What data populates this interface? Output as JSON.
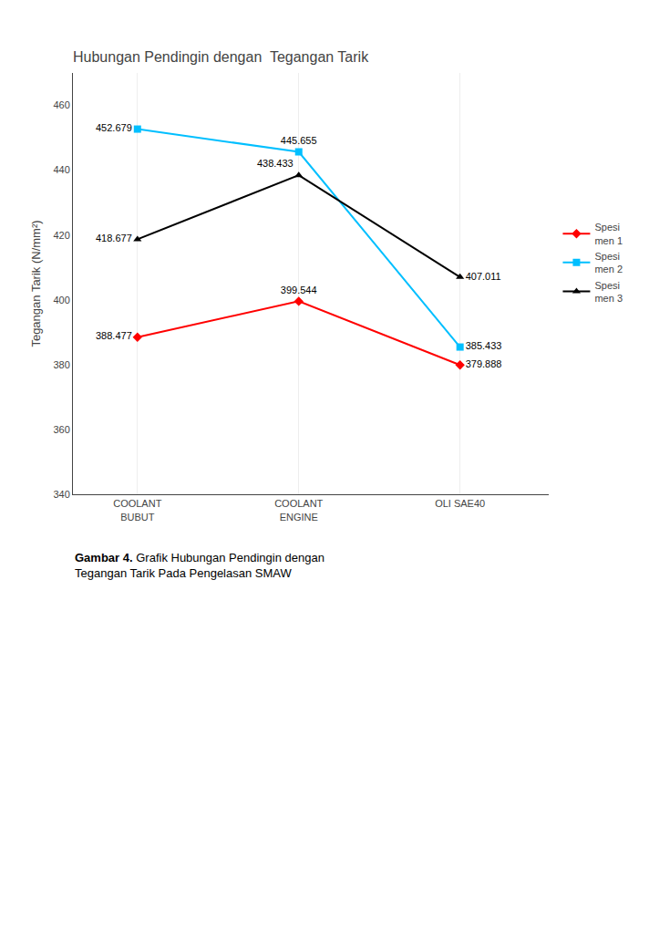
{
  "chart_data": {
    "type": "line",
    "title": "Hubungan Pendingin dengan  Tegangan Tarik",
    "y_label": "Tegangan Tarik (N/mm²)",
    "categories": [
      "COOLANT\nBUBUT",
      "COOLANT\nENGINE",
      "OLI SAE40"
    ],
    "series": [
      {
        "name": "Spesi\nmen 1",
        "color": "#FF0000",
        "marker": "diamond",
        "values": [
          388.477,
          399.544,
          379.888
        ]
      },
      {
        "name": "Spesi\nmen 2",
        "color": "#00BFFF",
        "marker": "square",
        "values": [
          452.679,
          445.655,
          385.433
        ]
      },
      {
        "name": "Spesi\nmen 3",
        "color": "#000000",
        "marker": "triangle",
        "values": [
          418.677,
          438.433,
          407.011
        ]
      }
    ],
    "ylim": [
      340,
      470
    ],
    "yticks": [
      340,
      360,
      380,
      400,
      420,
      440,
      460
    ],
    "grid": "x",
    "legend": "right",
    "data_labels": true,
    "annotations": [
      "Gambar 4.",
      "Grafik Hubungan Pendingin dengan",
      "Tegangan Tarik Pada Pengelasan SMAW"
    ]
  }
}
